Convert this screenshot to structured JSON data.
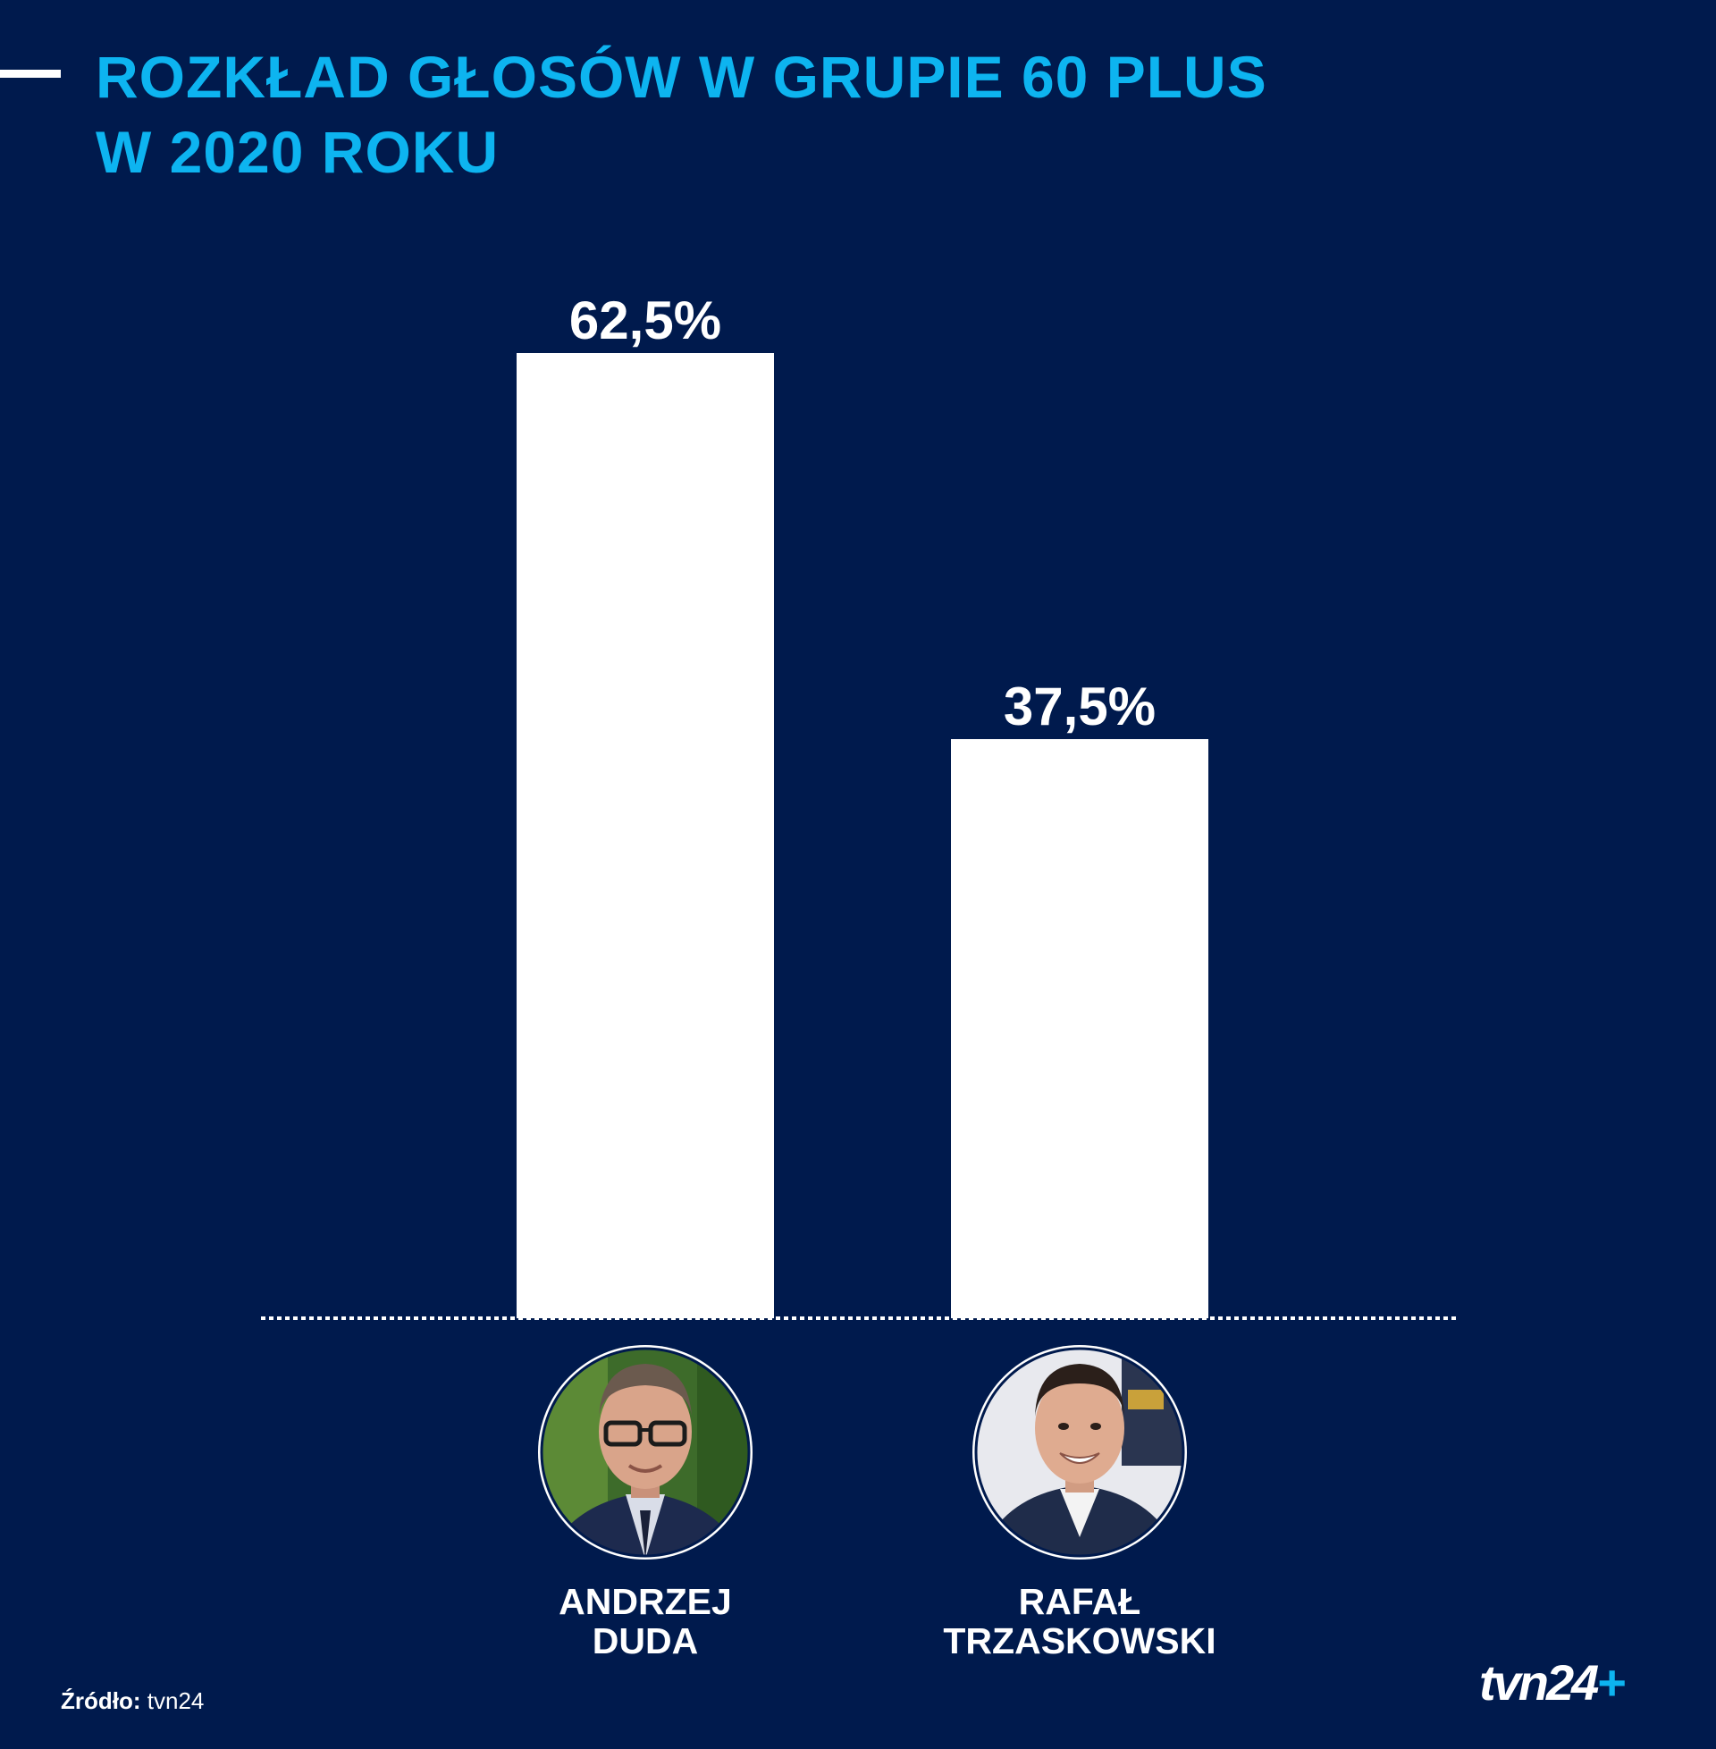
{
  "title": {
    "line1": "ROZKŁAD GŁOSÓW W GRUPIE 60 PLUS",
    "line2": "W 2020 ROKU"
  },
  "chart_data": {
    "type": "bar",
    "title": "ROZKŁAD GŁOSÓW W GRUPIE 60 PLUS W 2020 ROKU",
    "categories": [
      "ANDRZEJ DUDA",
      "RAFAŁ TRZASKOWSKI"
    ],
    "category_lines": [
      [
        "ANDRZEJ",
        "DUDA"
      ],
      [
        "RAFAŁ",
        "TRZASKOWSKI"
      ]
    ],
    "values": [
      62.5,
      37.5
    ],
    "value_labels": [
      "62,5%",
      "37,5%"
    ],
    "unit": "%",
    "ylim": [
      0,
      62.5
    ],
    "grid": false,
    "baseline": "dotted",
    "bar_color": "#ffffff",
    "avatars": [
      "andrzej-duda-photo",
      "rafal-trzaskowski-photo"
    ]
  },
  "source": {
    "label": "Źródło:",
    "value": "tvn24"
  },
  "logo": {
    "text": "tvn24",
    "plus": "+"
  },
  "colors": {
    "background": "#001a4d",
    "accent": "#0db4f0",
    "bar": "#ffffff"
  }
}
